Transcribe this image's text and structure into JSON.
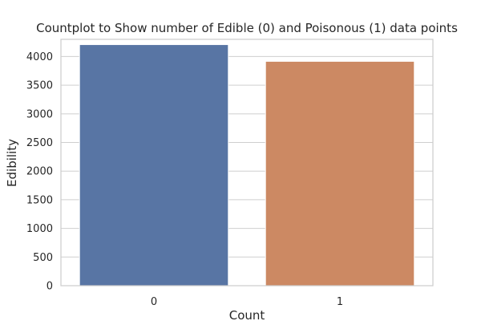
{
  "chart_data": {
    "type": "bar",
    "title": "Countplot to Show number of Edible (0) and Poisonous (1) data points",
    "xlabel": "Count",
    "ylabel": "Edibility",
    "categories": [
      "0",
      "1"
    ],
    "values": [
      4208,
      3916
    ],
    "colors": [
      "#5875a4",
      "#cc8963"
    ],
    "ylim": [
      0,
      4300
    ],
    "yticks": [
      0,
      500,
      1000,
      1500,
      2000,
      2500,
      3000,
      3500,
      4000
    ],
    "grid": true,
    "legend": null
  }
}
